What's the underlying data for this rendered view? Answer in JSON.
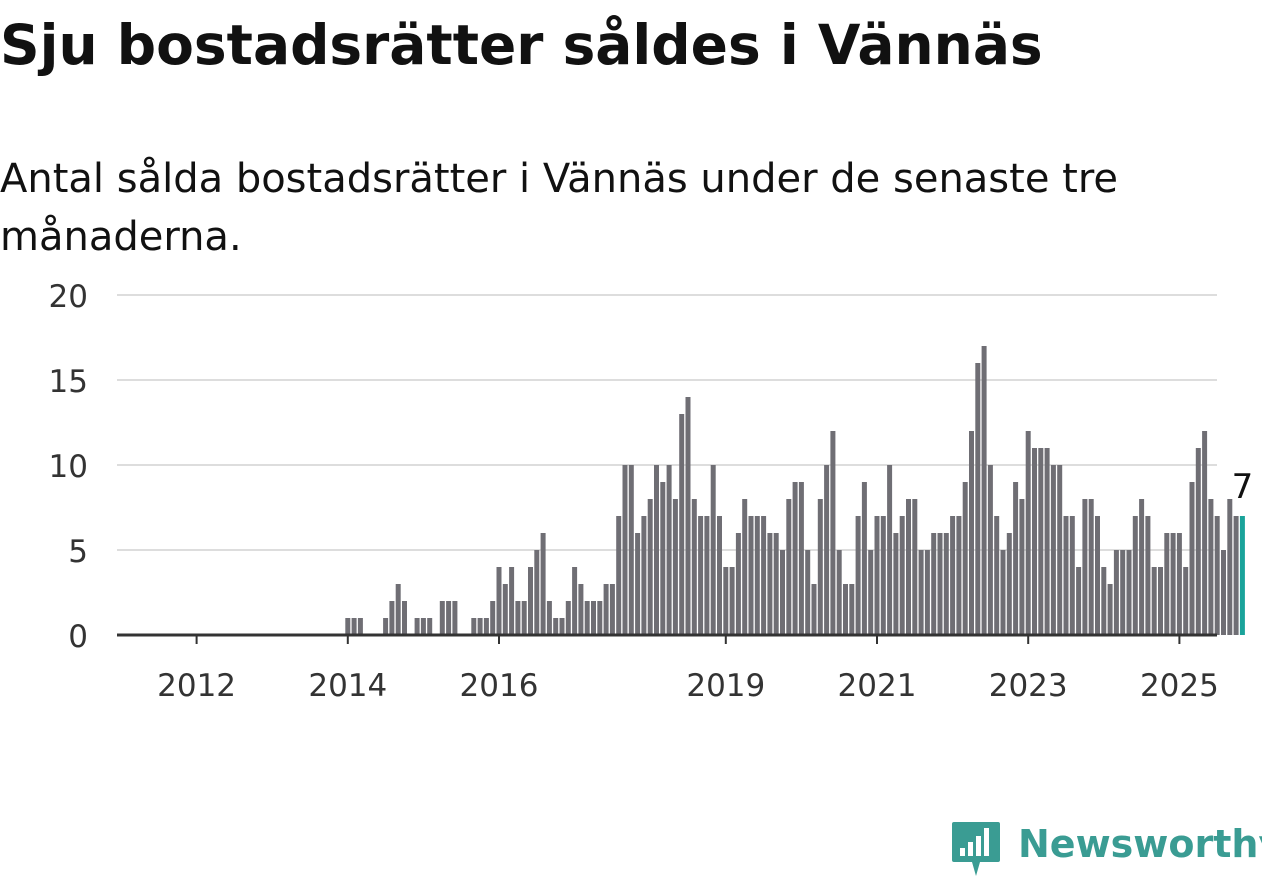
{
  "title": "Sju bostadsrätter såldes i Vännäs",
  "subtitle": "Antal sålda bostadsrätter i Vännäs under de senaste tre månaderna.",
  "brand": {
    "name": "Newsworthy",
    "color": "#3a9c93",
    "icon": "newsworthy-logo-icon"
  },
  "colors": {
    "bar": "#6f6e74",
    "highlight": "#1aa39a",
    "grid": "#dddddd",
    "axis": "#333333"
  },
  "chart_data": {
    "type": "bar",
    "title": "",
    "xlabel": "",
    "ylabel": "",
    "ylim": [
      0,
      20
    ],
    "yticks": [
      "0",
      "5",
      "10",
      "15",
      "20"
    ],
    "xticks": [
      "2012",
      "2014",
      "2016",
      "2019",
      "2021",
      "2023",
      "2025"
    ],
    "start_month": "2011-01",
    "end_month": "2025-03",
    "highlight_label": "7",
    "series": [
      {
        "values": [
          0,
          0,
          0,
          0,
          0,
          0,
          0,
          0,
          0,
          0,
          0,
          0,
          0,
          0,
          0,
          0,
          0,
          0,
          0,
          0,
          0,
          0,
          0,
          0,
          0,
          0,
          0,
          0,
          0,
          0,
          0,
          0,
          0,
          0,
          0,
          0,
          1,
          1,
          1,
          0,
          0,
          0,
          1,
          2,
          3,
          2,
          0,
          1,
          1,
          1,
          0,
          2,
          2,
          2,
          0,
          0,
          1,
          1,
          1,
          2,
          4,
          3,
          4,
          2,
          2,
          4,
          5,
          6,
          2,
          1,
          1,
          2,
          4,
          3,
          2,
          2,
          2,
          3,
          3,
          7,
          10,
          10,
          6,
          7,
          8,
          10,
          9,
          10,
          8,
          13,
          14,
          8,
          7,
          7,
          10,
          7,
          4,
          4,
          6,
          8,
          7,
          7,
          7,
          6,
          6,
          5,
          8,
          9,
          9,
          5,
          3,
          8,
          10,
          12,
          5,
          3,
          3,
          7,
          9,
          5,
          7,
          7,
          10,
          6,
          7,
          8,
          8,
          5,
          5,
          6,
          6,
          6,
          7,
          7,
          9,
          12,
          16,
          17,
          10,
          7,
          5,
          6,
          9,
          8,
          12,
          11,
          11,
          11,
          10,
          10,
          7,
          7,
          4,
          8,
          8,
          7,
          4,
          3,
          5,
          5,
          5,
          7,
          8,
          7,
          4,
          4,
          6,
          6,
          6,
          4,
          9,
          11,
          12,
          8,
          7,
          5,
          8,
          7,
          7
        ]
      }
    ]
  }
}
